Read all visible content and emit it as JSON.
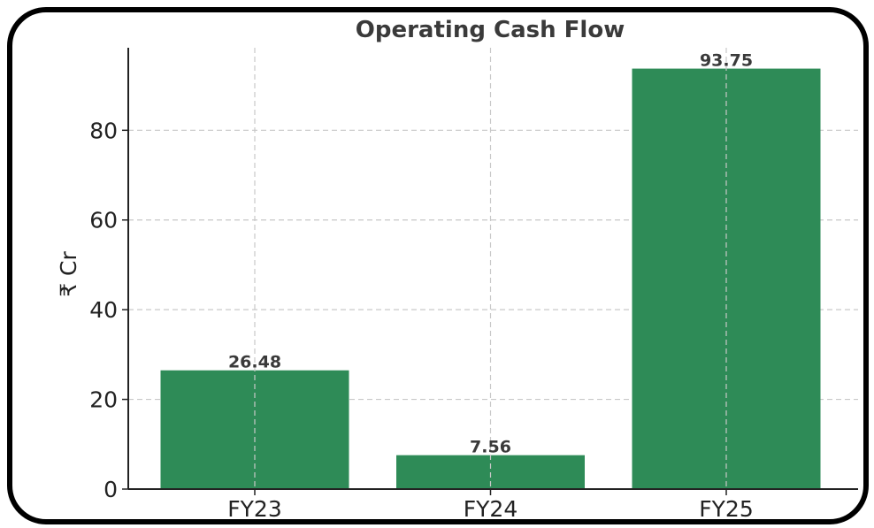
{
  "chart_data": {
    "type": "bar",
    "title": "Operating Cash Flow",
    "xlabel": "",
    "ylabel": "₹ Cr",
    "categories": [
      "FY23",
      "FY24",
      "FY25"
    ],
    "values": [
      26.48,
      7.56,
      93.75
    ],
    "data_labels": [
      "26.48",
      "7.56",
      "93.75"
    ],
    "yticks": [
      0,
      20,
      40,
      60,
      80
    ],
    "ylim": [
      0,
      98.4
    ],
    "grid": true,
    "legend": "none",
    "colors": {
      "bar": "#2e8b57",
      "frame": "#000000",
      "grid": "#c8c8c8",
      "text": "#3a3a3a"
    }
  }
}
